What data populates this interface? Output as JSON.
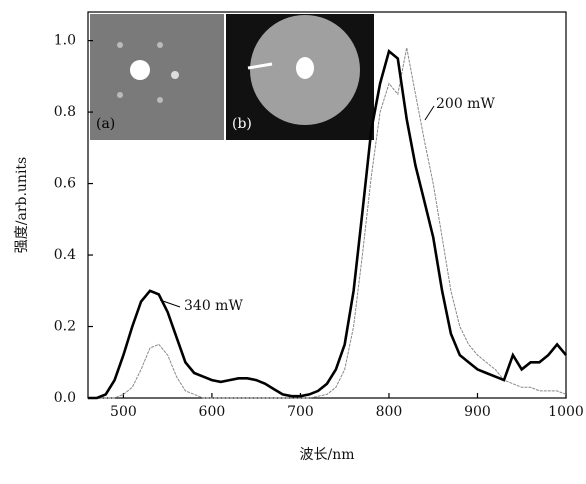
{
  "chart_data": {
    "type": "line",
    "x_label": "波长/nm",
    "y_label": "强度/arb.units",
    "x": [
      460,
      470,
      480,
      490,
      500,
      510,
      520,
      530,
      540,
      550,
      560,
      570,
      580,
      590,
      600,
      610,
      620,
      630,
      640,
      650,
      660,
      670,
      680,
      690,
      700,
      710,
      720,
      730,
      740,
      750,
      760,
      770,
      780,
      790,
      800,
      810,
      820,
      830,
      840,
      850,
      860,
      870,
      880,
      890,
      900,
      910,
      920,
      930,
      940,
      950,
      960,
      970,
      980,
      990,
      1000
    ],
    "series": [
      {
        "name": "340 mW",
        "color": "#000000",
        "values": [
          0,
          0,
          0.01,
          0.05,
          0.12,
          0.2,
          0.27,
          0.3,
          0.29,
          0.24,
          0.17,
          0.1,
          0.07,
          0.06,
          0.05,
          0.045,
          0.05,
          0.055,
          0.055,
          0.05,
          0.04,
          0.025,
          0.01,
          0.005,
          0.005,
          0.01,
          0.02,
          0.04,
          0.08,
          0.15,
          0.3,
          0.52,
          0.75,
          0.88,
          0.97,
          0.95,
          0.78,
          0.65,
          0.55,
          0.45,
          0.3,
          0.18,
          0.12,
          0.1,
          0.08,
          0.07,
          0.06,
          0.05,
          0.12,
          0.08,
          0.1,
          0.1,
          0.12,
          0.15,
          0.12
        ]
      },
      {
        "name": "200 mW",
        "color": "#888888",
        "values": [
          0,
          0,
          0,
          0,
          0.01,
          0.03,
          0.08,
          0.14,
          0.15,
          0.12,
          0.06,
          0.02,
          0.01,
          0,
          0,
          0,
          0,
          0,
          0,
          0,
          0,
          0,
          0,
          0,
          0,
          0,
          0.005,
          0.01,
          0.03,
          0.08,
          0.2,
          0.4,
          0.62,
          0.8,
          0.88,
          0.85,
          0.98,
          0.85,
          0.72,
          0.6,
          0.45,
          0.3,
          0.2,
          0.15,
          0.12,
          0.1,
          0.08,
          0.05,
          0.04,
          0.03,
          0.03,
          0.02,
          0.02,
          0.02,
          0.01
        ]
      }
    ],
    "xlim": [
      460,
      1000
    ],
    "xticks": [
      500,
      600,
      700,
      800,
      900,
      1000
    ],
    "ylim": [
      0,
      1.08
    ],
    "yticks": [
      {
        "value": 0,
        "label": "0.0"
      },
      0.2,
      0.4,
      0.6,
      0.8,
      {
        "value": 1,
        "label": "1.0"
      }
    ],
    "inset_labels": [
      "(a)",
      "(b)"
    ]
  }
}
